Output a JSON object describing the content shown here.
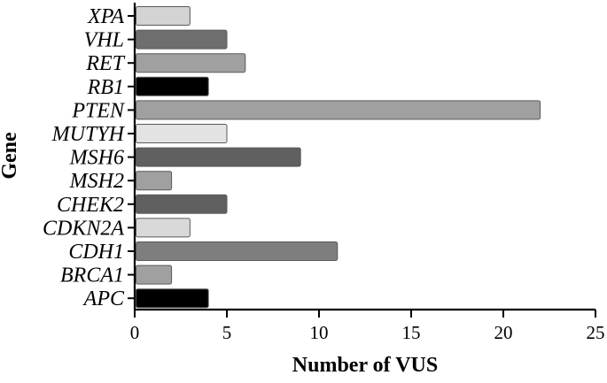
{
  "chart_data": {
    "type": "bar",
    "orientation": "horizontal",
    "categories": [
      "XPA",
      "VHL",
      "RET",
      "RB1",
      "PTEN",
      "MUTYH",
      "MSH6",
      "MSH2",
      "CHEK2",
      "CDKN2A",
      "CDH1",
      "BRCA1",
      "APC"
    ],
    "values": [
      3,
      5,
      6,
      4,
      22,
      5,
      9,
      2,
      5,
      3,
      11,
      2,
      4
    ],
    "colors": [
      "#d3d3d3",
      "#6e6e6e",
      "#a0a0a0",
      "#000000",
      "#a0a0a0",
      "#e3e3e3",
      "#606060",
      "#a0a0a0",
      "#5f5f5f",
      "#d9d9d9",
      "#7e7e7e",
      "#a0a0a0",
      "#000000"
    ],
    "bar_stroke": "#5a5a5a",
    "xlabel": "Number of VUS",
    "ylabel": "Gene",
    "xlim": [
      0,
      25
    ],
    "xticks": [
      0,
      5,
      10,
      15,
      20,
      25
    ],
    "grid": false,
    "legend": "none"
  }
}
